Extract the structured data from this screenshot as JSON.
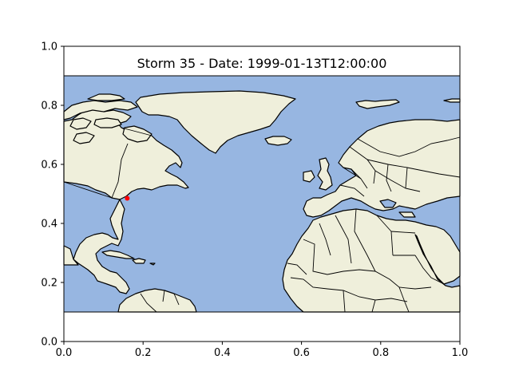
{
  "title": "Storm 35 - Date: 1999-01-13T12:00:00",
  "colors": {
    "ocean": "#97b6e1",
    "land": "#efefdb",
    "coast": "#000000",
    "storm_point": "#ff0000"
  },
  "chart_data": {
    "type": "scatter",
    "title": "Storm 35 - Date: 1999-01-13T12:00:00",
    "xlim": [
      0.0,
      1.0
    ],
    "ylim": [
      0.0,
      1.0
    ],
    "x_ticks": [
      "0.0",
      "0.2",
      "0.4",
      "0.6",
      "0.8",
      "1.0"
    ],
    "y_ticks": [
      "0.0",
      "0.2",
      "0.4",
      "0.6",
      "0.8",
      "1.0"
    ],
    "grid": false,
    "points": [
      {
        "x": 0.16,
        "y": 0.485,
        "color": "#ff0000"
      }
    ],
    "map_extent_y": [
      0.1,
      0.9
    ]
  }
}
